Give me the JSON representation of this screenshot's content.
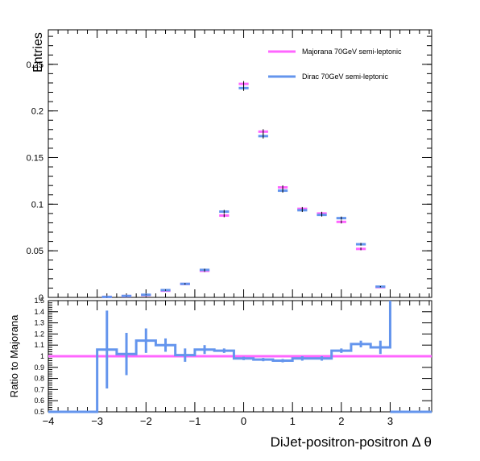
{
  "chart_data": [
    {
      "type": "line",
      "ylabel": "Entries",
      "xlim": [
        -4,
        3.85
      ],
      "ylim": [
        0,
        0.287
      ],
      "yticks": [
        0,
        0.05,
        0.1,
        0.15,
        0.2,
        0.25
      ],
      "ytick_labels": [
        "0",
        "0.05",
        "0.1",
        "0.15",
        "0.2",
        "0.25"
      ],
      "legend_position": "top-right",
      "bin_edges": [
        -3.0,
        -2.6,
        -2.2,
        -1.8,
        -1.4,
        -1.0,
        -0.6,
        -0.2,
        0.2,
        0.6,
        1.0,
        1.4,
        1.8,
        2.2,
        2.6,
        3.0
      ],
      "series": [
        {
          "name": "Majorana 70GeV semi-leptonic",
          "color": "#ff66ff",
          "values": [
            0.0005,
            0.0014,
            0.0025,
            0.0072,
            0.0144,
            0.0285,
            0.0878,
            0.229,
            0.1778,
            0.118,
            0.095,
            0.09,
            0.081,
            0.052,
            0.011
          ],
          "errors": [
            0.0003,
            0.0003,
            0.0004,
            0.0006,
            0.0008,
            0.0012,
            0.0018,
            0.003,
            0.0026,
            0.0021,
            0.0019,
            0.0018,
            0.0017,
            0.0014,
            0.0006
          ]
        },
        {
          "name": "Dirac 70GeV semi-leptonic",
          "color": "#6495ed",
          "values": [
            0.0005,
            0.0015,
            0.0028,
            0.0078,
            0.0145,
            0.0295,
            0.092,
            0.2245,
            0.173,
            0.1145,
            0.0935,
            0.0885,
            0.085,
            0.057,
            0.0115
          ],
          "errors": [
            0.0003,
            0.0003,
            0.0004,
            0.0006,
            0.0008,
            0.0012,
            0.0018,
            0.003,
            0.0026,
            0.0021,
            0.0019,
            0.0018,
            0.0017,
            0.0014,
            0.0006
          ]
        }
      ]
    },
    {
      "type": "line",
      "ylabel": "Ratio to Majorana",
      "xlabel": "DiJet-positron-positron   Δ θ",
      "xlim": [
        -4,
        3.85
      ],
      "ylim": [
        0.5,
        1.5
      ],
      "xticks": [
        -4,
        -3,
        -2,
        -1,
        0,
        1,
        2,
        3
      ],
      "xtick_labels": [
        "−4",
        "−3",
        "−2",
        "−1",
        "0",
        "1",
        "2",
        "3"
      ],
      "yticks": [
        0.5,
        0.6,
        0.7,
        0.8,
        0.9,
        1,
        1.1,
        1.2,
        1.3,
        1.4,
        1.5
      ],
      "ytick_labels": [
        "0.5",
        "0.6",
        "0.7",
        "0.8",
        "0.9",
        "1",
        "1.1",
        "1.2",
        "1.3",
        "1.4",
        "1.5"
      ],
      "reference_line": {
        "y": 1.0,
        "color": "#ff66ff"
      },
      "ratio": {
        "color": "#6495ed",
        "bin_edges": [
          -3.0,
          -2.6,
          -2.2,
          -1.8,
          -1.4,
          -1.0,
          -0.6,
          -0.2,
          0.2,
          0.6,
          1.0,
          1.4,
          1.8,
          2.2,
          2.6,
          3.0
        ],
        "values": [
          1.06,
          1.02,
          1.14,
          1.1,
          1.01,
          1.06,
          1.05,
          0.98,
          0.97,
          0.96,
          0.98,
          0.98,
          1.05,
          1.11,
          1.08
        ],
        "errors": [
          0.35,
          0.19,
          0.11,
          0.06,
          0.06,
          0.04,
          0.02,
          0.015,
          0.015,
          0.015,
          0.02,
          0.02,
          0.02,
          0.03,
          0.06
        ],
        "outside_value": 0.5
      }
    }
  ]
}
